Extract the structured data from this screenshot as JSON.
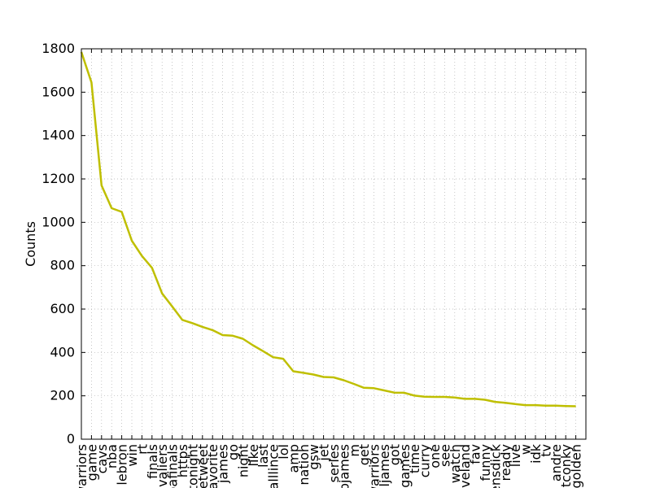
{
  "chart_data": {
    "type": "line",
    "ylabel": "Counts",
    "xlabel": "",
    "ylim": [
      0,
      1800
    ],
    "yticks": [
      0,
      200,
      400,
      600,
      800,
      1000,
      1200,
      1400,
      1600,
      1800
    ],
    "grid": true,
    "line_color": "#bfbf00",
    "categories": [
      "warriors",
      "game",
      "cavs",
      "nba",
      "lebron",
      "win",
      "rt",
      "finals",
      "cavaliers",
      "nbafinals",
      "https",
      "tonight",
      "retweet",
      "favorite",
      "james",
      "go",
      "night",
      "like",
      "last",
      "challlince",
      "lol",
      "amp",
      "nation",
      "gsw",
      "jet",
      "series",
      "lebjames",
      "m",
      "get",
      "warriors",
      "ljames",
      "got",
      "games",
      "time",
      "curry",
      "one",
      "see",
      "watch",
      "cleveland",
      "fav",
      "funny",
      "mensdick",
      "ready",
      "live",
      "w",
      "idk",
      "tv",
      "andre",
      "tconky",
      "golden"
    ],
    "series": [
      {
        "values": [
          1785,
          1645,
          1170,
          1065,
          1048,
          915,
          845,
          790,
          672,
          612,
          550,
          535,
          518,
          503,
          480,
          477,
          463,
          433,
          406,
          378,
          371,
          313,
          306,
          298,
          287,
          285,
          272,
          255,
          237,
          235,
          225,
          215,
          214,
          201,
          196,
          195,
          195,
          192,
          186,
          186,
          182,
          172,
          168,
          162,
          157,
          157,
          155,
          155,
          153,
          152
        ]
      }
    ]
  }
}
